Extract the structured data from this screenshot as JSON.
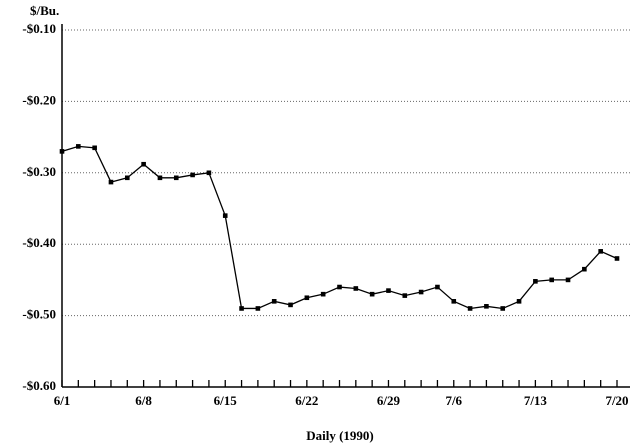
{
  "chart_data": {
    "type": "line",
    "y_label": "$/Bu.",
    "x_label": "Daily (1990)",
    "categories": [
      "6/1",
      null,
      null,
      null,
      null,
      "6/8",
      null,
      null,
      null,
      null,
      "6/15",
      null,
      null,
      null,
      null,
      "6/22",
      null,
      null,
      null,
      null,
      "6/29",
      null,
      null,
      null,
      "7/6",
      null,
      null,
      null,
      null,
      "7/13",
      null,
      null,
      null,
      null,
      "7/20"
    ],
    "series": [
      {
        "color": "#000000",
        "values": [
          -0.27,
          -0.263,
          -0.265,
          -0.313,
          -0.307,
          -0.288,
          -0.307,
          -0.307,
          -0.303,
          -0.3,
          -0.36,
          -0.49,
          -0.49,
          -0.48,
          -0.485,
          -0.475,
          -0.47,
          -0.46,
          -0.462,
          -0.47,
          -0.465,
          -0.472,
          -0.467,
          -0.46,
          -0.48,
          -0.49,
          -0.487,
          -0.49,
          -0.48,
          -0.452,
          -0.45,
          -0.45,
          -0.435,
          -0.41,
          -0.42
        ]
      }
    ],
    "ylim": [
      -0.6,
      -0.1
    ],
    "yticks": [
      {
        "value": -0.6,
        "label": "-$0.60"
      },
      {
        "value": -0.5,
        "label": "-$0.50"
      },
      {
        "value": -0.4,
        "label": "-$0.40"
      },
      {
        "value": -0.3,
        "label": "-$0.30"
      },
      {
        "value": -0.2,
        "label": "-$0.20"
      },
      {
        "value": -0.1,
        "label": "-$0.10"
      }
    ],
    "grid": true
  }
}
